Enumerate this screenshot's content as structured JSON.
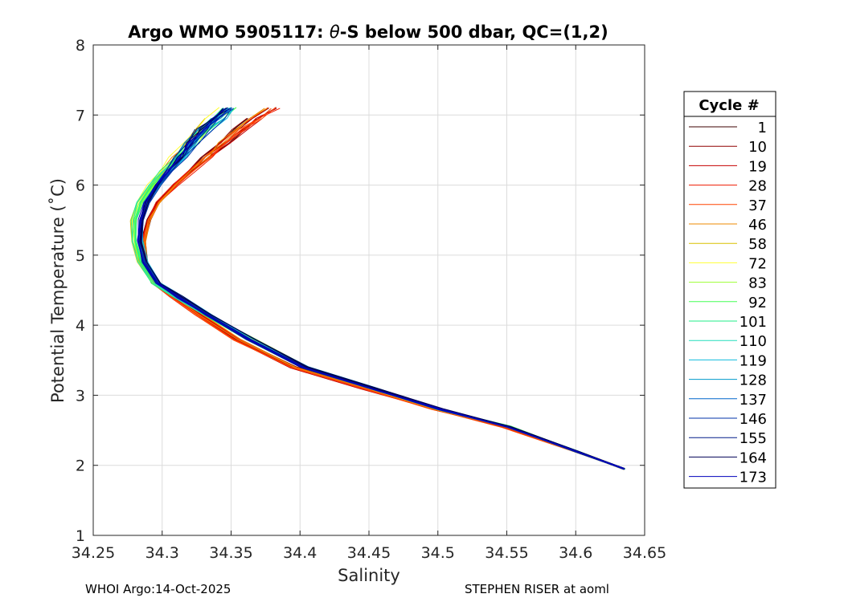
{
  "chart_data": {
    "type": "line",
    "title_prefix": "Argo WMO 5905117: ",
    "title_theta": "θ",
    "title_suffix": "-S below 500 dbar,  QC=(1,2)",
    "xlabel": "Salinity",
    "ylabel": "Potential Temperature (˚C)",
    "xlim": [
      34.25,
      34.65
    ],
    "ylim": [
      1,
      8
    ],
    "xticks": [
      "34.25",
      "34.3",
      "34.35",
      "34.4",
      "34.45",
      "34.5",
      "34.55",
      "34.6",
      "34.65"
    ],
    "yticks": [
      "1",
      "2",
      "3",
      "4",
      "5",
      "6",
      "7",
      "8"
    ],
    "grid": true,
    "legend_placement": "outside-right",
    "legend_title": "Cycle #",
    "legend": [
      {
        "label": "1",
        "color": "#3d0000"
      },
      {
        "label": "10",
        "color": "#900000"
      },
      {
        "label": "19",
        "color": "#c40000"
      },
      {
        "label": "28",
        "color": "#ee1a00"
      },
      {
        "label": "37",
        "color": "#ff4400"
      },
      {
        "label": "46",
        "color": "#ee8800"
      },
      {
        "label": "58",
        "color": "#d9c000"
      },
      {
        "label": "72",
        "color": "#ffff33"
      },
      {
        "label": "83",
        "color": "#9cff33"
      },
      {
        "label": "92",
        "color": "#44ff55"
      },
      {
        "label": "101",
        "color": "#22ee88"
      },
      {
        "label": "110",
        "color": "#22ddbb"
      },
      {
        "label": "119",
        "color": "#11bbdd"
      },
      {
        "label": "128",
        "color": "#0099cc"
      },
      {
        "label": "137",
        "color": "#0066cc"
      },
      {
        "label": "146",
        "color": "#0033aa"
      },
      {
        "label": "155",
        "color": "#001a88"
      },
      {
        "label": "164",
        "color": "#000055"
      },
      {
        "label": "173",
        "color": "#0000bb"
      }
    ],
    "base_curve": {
      "s": [
        34.635,
        34.6,
        34.55,
        34.5,
        34.45,
        34.4,
        34.36,
        34.33,
        34.31,
        34.295,
        34.286,
        34.283,
        34.285,
        34.29,
        34.3,
        34.31,
        34.32,
        34.33,
        34.34,
        34.35,
        34.36
      ],
      "t": [
        1.95,
        2.2,
        2.55,
        2.8,
        3.1,
        3.4,
        3.8,
        4.15,
        4.4,
        4.6,
        4.9,
        5.2,
        5.5,
        5.75,
        6.0,
        6.2,
        6.4,
        6.6,
        6.8,
        6.95,
        7.1
      ]
    }
  },
  "footer": {
    "left": "WHOI Argo:14-Oct-2025",
    "right": "STEPHEN RISER at aoml"
  }
}
